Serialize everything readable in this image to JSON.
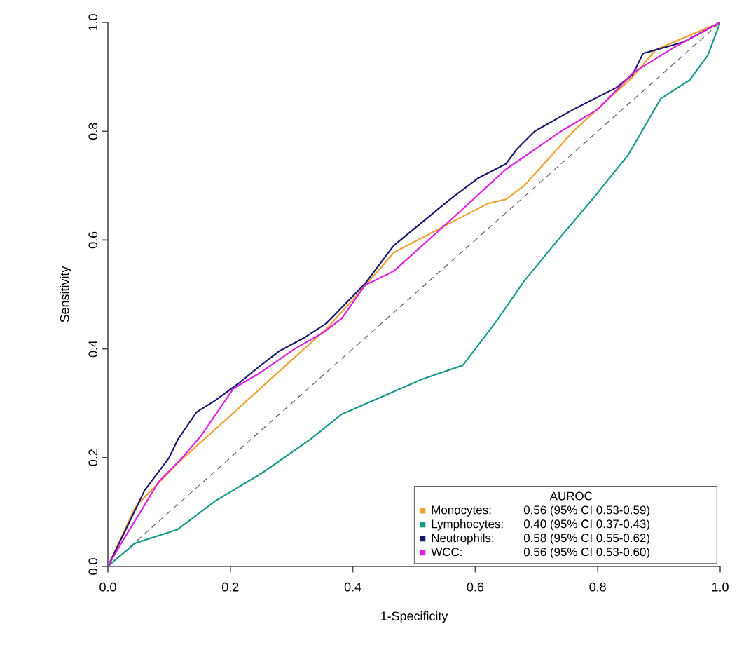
{
  "chart_data": {
    "type": "line",
    "xlabel": "1-Specificity",
    "ylabel": "Sensitivity",
    "legend_title": "AUROC",
    "legend": "bottom right",
    "xlim": [
      0,
      1
    ],
    "ylim": [
      0,
      1
    ],
    "xticks": [
      {
        "value": 0,
        "label": "0.0"
      },
      0.2,
      0.4,
      0.6,
      0.8,
      {
        "value": 1,
        "label": "1.0"
      }
    ],
    "yticks": [
      {
        "value": 0,
        "label": "0.0"
      },
      0.2,
      0.4,
      0.6,
      0.8,
      {
        "value": 1,
        "label": "1.0"
      }
    ],
    "annotations": [
      "0.56 (95% CI 0.53-0.59)",
      "0.40 (95% CI 0.37-0.43)",
      "0.58 (95% CI 0.55-0.62)",
      "0.56 (95% CI 0.53-0.60)"
    ],
    "series": [
      {
        "color": "#606060",
        "line_style": "dashed",
        "x": [
          0,
          1
        ],
        "values": [
          0,
          1
        ]
      },
      {
        "name": "Monocytes:",
        "color": "#f0a030",
        "x": [
          0,
          0.045,
          0.114,
          0.19,
          0.283,
          0.36,
          0.413,
          0.467,
          0.54,
          0.62,
          0.65,
          0.68,
          0.76,
          0.857,
          0.895,
          1
        ],
        "values": [
          0,
          0.11,
          0.19,
          0.267,
          0.362,
          0.44,
          0.507,
          0.577,
          0.62,
          0.667,
          0.675,
          0.7,
          0.8,
          0.9,
          0.95,
          1
        ]
      },
      {
        "name": "Lymphocytes:",
        "color": "#1a9a8a",
        "x": [
          0,
          0.014,
          0.045,
          0.114,
          0.175,
          0.252,
          0.33,
          0.382,
          0.513,
          0.58,
          0.6,
          0.632,
          0.68,
          0.735,
          0.795,
          0.85,
          0.903,
          0.95,
          0.98,
          1
        ],
        "values": [
          0,
          0.014,
          0.043,
          0.068,
          0.12,
          0.172,
          0.233,
          0.28,
          0.344,
          0.37,
          0.4,
          0.447,
          0.525,
          0.6,
          0.68,
          0.757,
          0.86,
          0.894,
          0.94,
          1
        ]
      },
      {
        "name": "Neutrophils:",
        "color": "#1a1a6e",
        "x": [
          0,
          0.037,
          0.06,
          0.1,
          0.114,
          0.145,
          0.175,
          0.213,
          0.25,
          0.28,
          0.32,
          0.357,
          0.42,
          0.467,
          0.559,
          0.605,
          0.65,
          0.667,
          0.697,
          0.76,
          0.83,
          0.857,
          0.874,
          0.89,
          0.94,
          1
        ],
        "values": [
          0,
          0.086,
          0.14,
          0.2,
          0.233,
          0.284,
          0.305,
          0.336,
          0.37,
          0.396,
          0.42,
          0.447,
          0.52,
          0.59,
          0.675,
          0.714,
          0.74,
          0.766,
          0.8,
          0.84,
          0.88,
          0.904,
          0.943,
          0.948,
          0.964,
          1
        ]
      },
      {
        "name": "WCC:",
        "color": "#e020e0",
        "x": [
          0,
          0.022,
          0.053,
          0.083,
          0.12,
          0.152,
          0.205,
          0.25,
          0.305,
          0.352,
          0.382,
          0.42,
          0.467,
          0.559,
          0.65,
          0.74,
          0.8,
          0.857,
          0.926,
          1
        ],
        "values": [
          0,
          0.043,
          0.1,
          0.156,
          0.198,
          0.24,
          0.327,
          0.357,
          0.4,
          0.43,
          0.456,
          0.517,
          0.543,
          0.636,
          0.73,
          0.8,
          0.84,
          0.907,
          0.955,
          1
        ]
      }
    ]
  }
}
